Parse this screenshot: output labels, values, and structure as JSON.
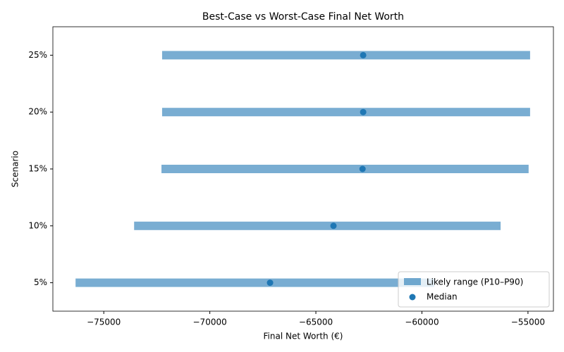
{
  "chart_data": {
    "type": "range",
    "title": "Best-Case vs Worst-Case Final Net Worth",
    "x_label": "Final Net Worth (€)",
    "y_label": "Scenario",
    "categories": [
      "5%",
      "10%",
      "15%",
      "20%",
      "25%"
    ],
    "range": {
      "name": "Likely range (P10–P90)",
      "color": "#1f77b4",
      "opacity": 0.6,
      "low": [
        -76330,
        -73570,
        -72280,
        -72250,
        -72250
      ],
      "high": [
        -59420,
        -56290,
        -54970,
        -54900,
        -54900
      ]
    },
    "median": {
      "name": "Median",
      "color": "#1f77b4",
      "values": [
        -67160,
        -64170,
        -62800,
        -62770,
        -62770
      ]
    },
    "xlim": [
      -77400,
      -53800
    ],
    "xticks": [
      {
        "value": -75000,
        "label": "−75000"
      },
      {
        "value": -70000,
        "label": "−70000"
      },
      {
        "value": -65000,
        "label": "−65000"
      },
      {
        "value": -60000,
        "label": "−60000"
      },
      {
        "value": -55000,
        "label": "−55000"
      }
    ],
    "legend": "lower right"
  }
}
